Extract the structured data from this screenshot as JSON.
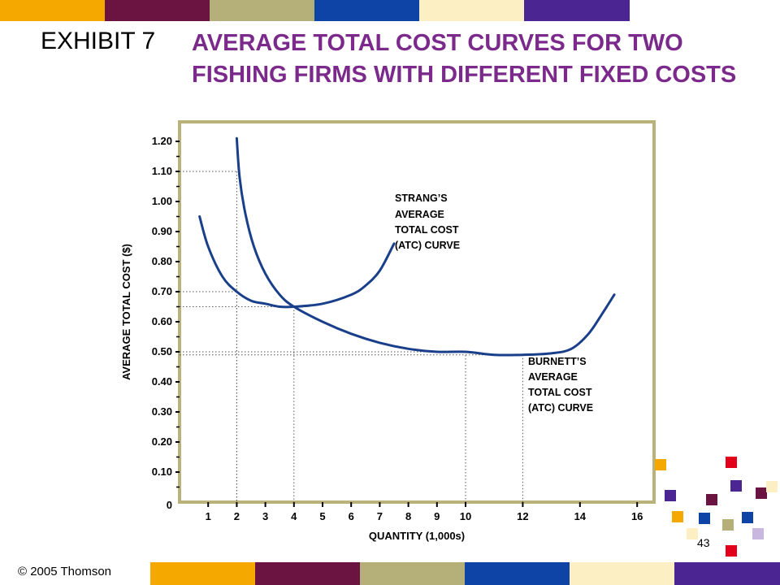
{
  "header": {
    "exhibit": "EXHIBIT 7",
    "title": "AVERAGE TOTAL COST CURVES FOR TWO FISHING FIRMS WITH DIFFERENT FIXED COSTS"
  },
  "footer": {
    "copyright": "© 2005 Thomson",
    "slide_number": "43"
  },
  "colors": {
    "title": "#7b2a8c",
    "curve": "#1a3f8a",
    "frame": "#b9b27a",
    "bars": [
      "#f5a800",
      "#6b1442",
      "#b5b07a",
      "#0e44a6",
      "#fcefc4",
      "#4b2591"
    ]
  },
  "chart_data": {
    "type": "line",
    "xlabel": "QUANTITY (1,000s)",
    "ylabel": "AVERAGE TOTAL COST ($)",
    "x_ticks": [
      "1",
      "2",
      "3",
      "4",
      "5",
      "6",
      "7",
      "8",
      "9",
      "10",
      "12",
      "14",
      "16"
    ],
    "y_ticks": [
      "0",
      "0.10",
      "0.20",
      "0.30",
      "0.40",
      "0.50",
      "0.60",
      "0.70",
      "0.80",
      "0.90",
      "1.00",
      "1.10",
      "1.20"
    ],
    "xlim": [
      0,
      16.8
    ],
    "ylim": [
      0,
      1.25
    ],
    "series": [
      {
        "label_lines": [
          "STRANG’S",
          "AVERAGE",
          "TOTAL COST",
          "(ATC) CURVE"
        ],
        "points": [
          [
            0.7,
            0.95
          ],
          [
            1.0,
            0.85
          ],
          [
            1.5,
            0.75
          ],
          [
            2.0,
            0.7
          ],
          [
            2.5,
            0.67
          ],
          [
            3.0,
            0.66
          ],
          [
            3.5,
            0.65
          ],
          [
            4.0,
            0.65
          ],
          [
            5.0,
            0.66
          ],
          [
            6.0,
            0.69
          ],
          [
            6.5,
            0.72
          ],
          [
            7.0,
            0.77
          ],
          [
            7.5,
            0.86
          ]
        ]
      },
      {
        "label_lines": [
          "BURNETT’S",
          "AVERAGE",
          "TOTAL COST",
          "(ATC) CURVE"
        ],
        "points": [
          [
            2.0,
            1.21
          ],
          [
            2.1,
            1.08
          ],
          [
            2.3,
            0.96
          ],
          [
            2.6,
            0.85
          ],
          [
            3.0,
            0.76
          ],
          [
            3.5,
            0.69
          ],
          [
            4.0,
            0.65
          ],
          [
            5.0,
            0.6
          ],
          [
            6.0,
            0.56
          ],
          [
            7.0,
            0.53
          ],
          [
            8.0,
            0.51
          ],
          [
            9.0,
            0.5
          ],
          [
            10.0,
            0.5
          ],
          [
            11.0,
            0.49
          ],
          [
            12.0,
            0.49
          ],
          [
            13.0,
            0.495
          ],
          [
            13.7,
            0.51
          ],
          [
            14.3,
            0.56
          ],
          [
            14.8,
            0.63
          ],
          [
            15.2,
            0.69
          ]
        ]
      }
    ],
    "reference_lines": [
      {
        "x": 2,
        "y": 1.1
      },
      {
        "x": 2,
        "y": 0.7
      },
      {
        "x": 4,
        "y": 0.65
      },
      {
        "x": 10,
        "y": 0.5
      },
      {
        "x": 12,
        "y": 0.49
      }
    ]
  }
}
